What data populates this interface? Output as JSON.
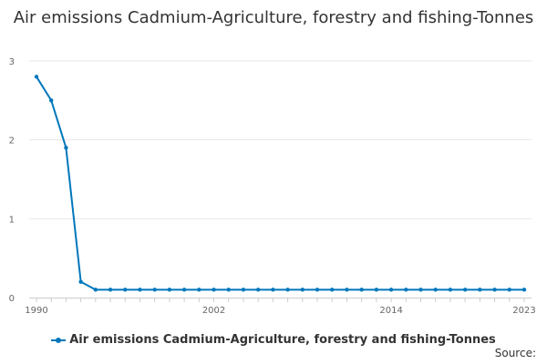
{
  "chart_data": {
    "type": "line",
    "title": "Air emissions Cadmium-Agriculture, forestry and fishing-Tonnes",
    "xlabel": "",
    "ylabel": "",
    "x": [
      1990,
      1991,
      1992,
      1993,
      1994,
      1995,
      1996,
      1997,
      1998,
      1999,
      2000,
      2001,
      2002,
      2003,
      2004,
      2005,
      2006,
      2007,
      2008,
      2009,
      2010,
      2011,
      2012,
      2013,
      2014,
      2015,
      2016,
      2017,
      2018,
      2019,
      2020,
      2021,
      2022,
      2023
    ],
    "series": [
      {
        "name": "Air emissions Cadmium-Agriculture, forestry and fishing-Tonnes",
        "color": "#0077bb",
        "values": [
          2.8,
          2.5,
          1.9,
          0.2,
          0.1,
          0.1,
          0.1,
          0.1,
          0.1,
          0.1,
          0.1,
          0.1,
          0.1,
          0.1,
          0.1,
          0.1,
          0.1,
          0.1,
          0.1,
          0.1,
          0.1,
          0.1,
          0.1,
          0.1,
          0.1,
          0.1,
          0.1,
          0.1,
          0.1,
          0.1,
          0.1,
          0.1,
          0.1,
          0.1
        ]
      }
    ],
    "xticks": [
      1990,
      2002,
      2014,
      2023
    ],
    "yticks": [
      0,
      1,
      2,
      3
    ],
    "xlim": [
      1990,
      2023
    ],
    "ylim": [
      0,
      3
    ],
    "grid": "horizontal",
    "legend_position": "bottom"
  },
  "legend_label": "Air emissions Cadmium-Agriculture, forestry and fishing-Tonnes",
  "source_label": "Source:"
}
